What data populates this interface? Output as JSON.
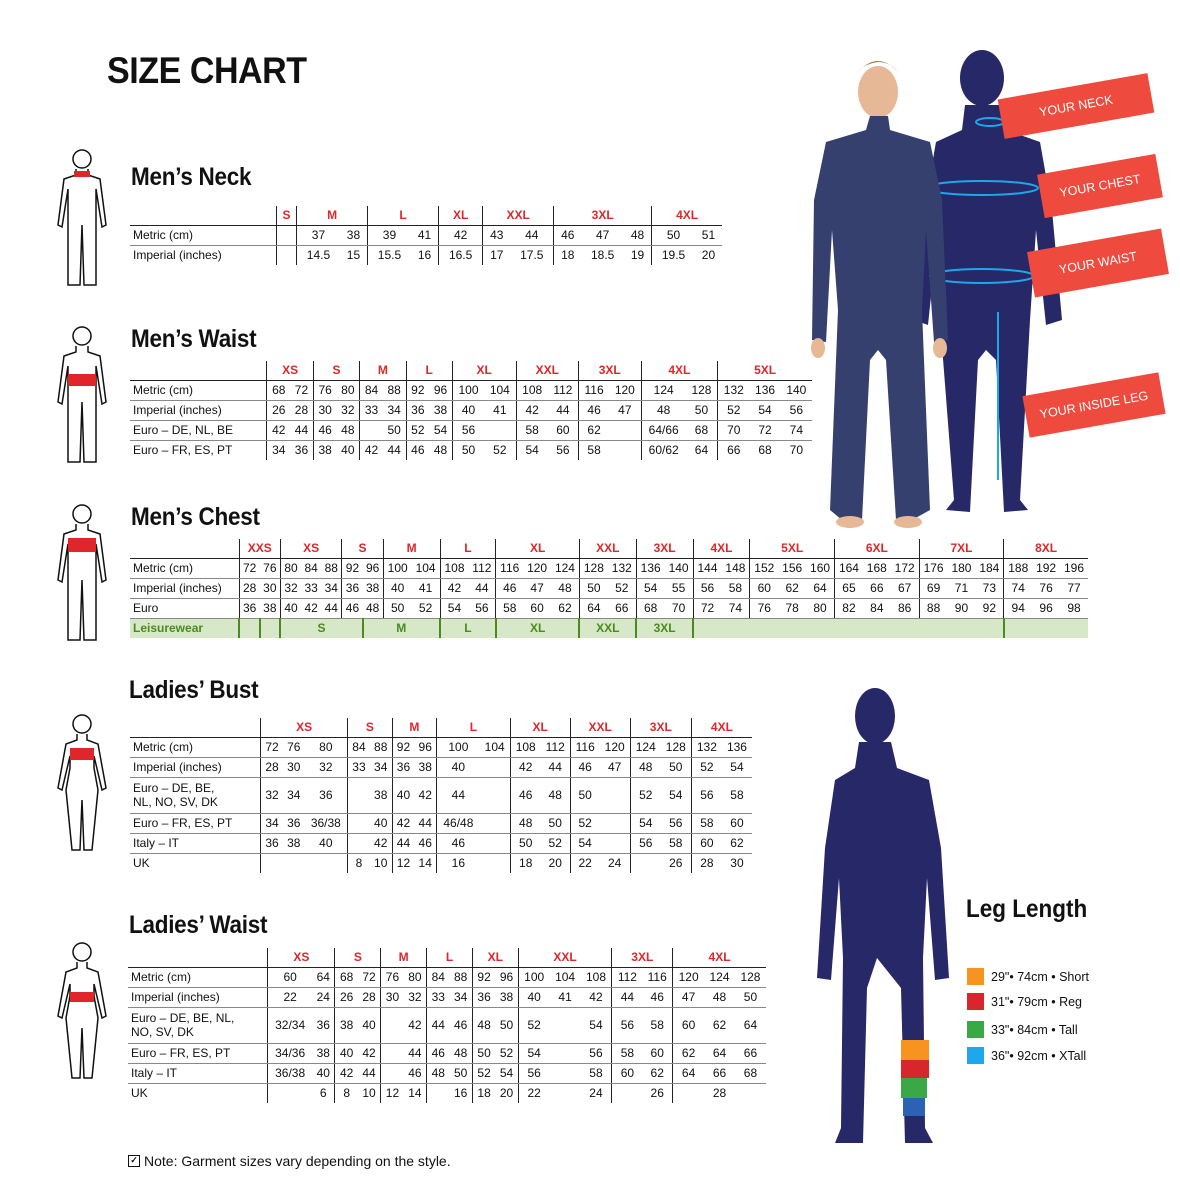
{
  "title": "SIZE CHART",
  "tables": [
    {
      "id": "mens-neck",
      "title": "Men’s Neck",
      "groups": [
        [
          "S",
          1
        ],
        [
          "M",
          2
        ],
        [
          "L",
          2
        ],
        [
          "XL",
          1
        ],
        [
          "XXL",
          2
        ],
        [
          "3XL",
          3
        ],
        [
          "4XL",
          2
        ]
      ],
      "rows": [
        {
          "label": "Metric (cm)",
          "cells": [
            "",
            "37",
            "38",
            "39",
            "41",
            "42",
            "43",
            "44",
            "46",
            "47",
            "48",
            "50",
            "51"
          ]
        },
        {
          "label": "Imperial (inches)",
          "cells": [
            "",
            "14.5",
            "15",
            "15.5",
            "16",
            "16.5",
            "17",
            "17.5",
            "18",
            "18.5",
            "19",
            "19.5",
            "20"
          ]
        }
      ]
    },
    {
      "id": "mens-waist",
      "title": "Men’s Waist",
      "groups": [
        [
          "XS",
          2
        ],
        [
          "S",
          2
        ],
        [
          "M",
          2
        ],
        [
          "L",
          2
        ],
        [
          "XL",
          2
        ],
        [
          "XXL",
          2
        ],
        [
          "3XL",
          2
        ],
        [
          "4XL",
          2
        ],
        [
          "5XL",
          3
        ]
      ],
      "rows": [
        {
          "label": "Metric (cm)",
          "cells": [
            "68",
            "72",
            "76",
            "80",
            "84",
            "88",
            "92",
            "96",
            "100",
            "104",
            "108",
            "112",
            "116",
            "120",
            "124",
            "128",
            "132",
            "136",
            "140"
          ]
        },
        {
          "label": "Imperial (inches)",
          "cells": [
            "26",
            "28",
            "30",
            "32",
            "33",
            "34",
            "36",
            "38",
            "40",
            "41",
            "42",
            "44",
            "46",
            "47",
            "48",
            "50",
            "52",
            "54",
            "56"
          ]
        },
        {
          "label": "Euro – DE, NL, BE",
          "cells": [
            "42",
            "44",
            "46",
            "48",
            "",
            "50",
            "52",
            "54",
            "56",
            "",
            "58",
            "60",
            "62",
            "",
            "64/66",
            "68",
            "70",
            "72",
            "74"
          ]
        },
        {
          "label": "Euro – FR, ES, PT",
          "cells": [
            "34",
            "36",
            "38",
            "40",
            "42",
            "44",
            "46",
            "48",
            "50",
            "52",
            "54",
            "56",
            "58",
            "",
            "60/62",
            "64",
            "66",
            "68",
            "70"
          ]
        }
      ]
    },
    {
      "id": "mens-chest",
      "title": "Men’s Chest",
      "groups": [
        [
          "XXS",
          2
        ],
        [
          "XS",
          3
        ],
        [
          "S",
          2
        ],
        [
          "M",
          2
        ],
        [
          "L",
          2
        ],
        [
          "XL",
          3
        ],
        [
          "XXL",
          2
        ],
        [
          "3XL",
          2
        ],
        [
          "4XL",
          2
        ],
        [
          "5XL",
          3
        ],
        [
          "6XL",
          3
        ],
        [
          "7XL",
          3
        ],
        [
          "8XL",
          3
        ]
      ],
      "rows": [
        {
          "label": "Metric (cm)",
          "cells": [
            "72",
            "76",
            "80",
            "84",
            "88",
            "92",
            "96",
            "100",
            "104",
            "108",
            "112",
            "116",
            "120",
            "124",
            "128",
            "132",
            "136",
            "140",
            "144",
            "148",
            "152",
            "156",
            "160",
            "164",
            "168",
            "172",
            "176",
            "180",
            "184",
            "188",
            "192",
            "196"
          ]
        },
        {
          "label": "Imperial (inches)",
          "cells": [
            "28",
            "30",
            "32",
            "33",
            "34",
            "36",
            "38",
            "40",
            "41",
            "42",
            "44",
            "46",
            "47",
            "48",
            "50",
            "52",
            "54",
            "55",
            "56",
            "58",
            "60",
            "62",
            "64",
            "65",
            "66",
            "67",
            "69",
            "71",
            "73",
            "74",
            "76",
            "77"
          ]
        },
        {
          "label": "Euro",
          "cells": [
            "36",
            "38",
            "40",
            "42",
            "44",
            "46",
            "48",
            "50",
            "52",
            "54",
            "56",
            "58",
            "60",
            "62",
            "64",
            "66",
            "68",
            "70",
            "72",
            "74",
            "76",
            "78",
            "80",
            "82",
            "84",
            "86",
            "88",
            "90",
            "92",
            "94",
            "96",
            "98"
          ]
        }
      ],
      "leisurewear": {
        "label": "Leisurewear",
        "spans": [
          [
            "",
            1
          ],
          [
            "",
            1
          ],
          [
            "S",
            4
          ],
          [
            "M",
            3
          ],
          [
            "L",
            2
          ],
          [
            "XL",
            3
          ],
          [
            "XXL",
            2
          ],
          [
            "3XL",
            2
          ],
          [
            "",
            11
          ],
          [
            "",
            3
          ]
        ]
      }
    },
    {
      "id": "ladies-bust",
      "title": "Ladies’ Bust",
      "groups": [
        [
          "XS",
          3
        ],
        [
          "S",
          2
        ],
        [
          "M",
          2
        ],
        [
          "L",
          2
        ],
        [
          "XL",
          2
        ],
        [
          "XXL",
          2
        ],
        [
          "3XL",
          2
        ],
        [
          "4XL",
          2
        ]
      ],
      "rows": [
        {
          "label": "Metric (cm)",
          "cells": [
            "72",
            "76",
            "80",
            "84",
            "88",
            "92",
            "96",
            "100",
            "104",
            "108",
            "112",
            "116",
            "120",
            "124",
            "128",
            "132",
            "136"
          ]
        },
        {
          "label": "Imperial (inches)",
          "cells": [
            "28",
            "30",
            "32",
            "33",
            "34",
            "36",
            "38",
            "40",
            "",
            "42",
            "44",
            "46",
            "47",
            "48",
            "50",
            "52",
            "54"
          ]
        },
        {
          "label": "Euro –  DE, BE,",
          "label2": "NL, NO, SV, DK",
          "cells": [
            "32",
            "34",
            "36",
            "",
            "38",
            "40",
            "42",
            "44",
            "",
            "46",
            "48",
            "50",
            "",
            "52",
            "54",
            "56",
            "58"
          ]
        },
        {
          "label": "Euro – FR, ES, PT",
          "cells": [
            "34",
            "36",
            "36/38",
            "",
            "40",
            "42",
            "44",
            "46/48",
            "",
            "48",
            "50",
            "52",
            "",
            "54",
            "56",
            "58",
            "60"
          ]
        },
        {
          "label": "Italy – IT",
          "cells": [
            "36",
            "38",
            "40",
            "",
            "42",
            "44",
            "46",
            "46",
            "",
            "50",
            "52",
            "54",
            "",
            "56",
            "58",
            "60",
            "62"
          ]
        },
        {
          "label": "UK",
          "cells": [
            "",
            "",
            "",
            "8",
            "10",
            "12",
            "14",
            "16",
            "",
            "18",
            "20",
            "22",
            "24",
            "",
            "26",
            "28",
            "30"
          ]
        }
      ]
    },
    {
      "id": "ladies-waist",
      "title": "Ladies’ Waist",
      "groups": [
        [
          "XS",
          2
        ],
        [
          "S",
          2
        ],
        [
          "M",
          2
        ],
        [
          "L",
          2
        ],
        [
          "XL",
          2
        ],
        [
          "XXL",
          3
        ],
        [
          "3XL",
          2
        ],
        [
          "4XL",
          3
        ]
      ],
      "rows": [
        {
          "label": "Metric (cm)",
          "cells": [
            "60",
            "64",
            "68",
            "72",
            "76",
            "80",
            "84",
            "88",
            "92",
            "96",
            "100",
            "104",
            "108",
            "112",
            "116",
            "120",
            "124",
            "128"
          ]
        },
        {
          "label": "Imperial (inches)",
          "cells": [
            "22",
            "24",
            "26",
            "28",
            "30",
            "32",
            "33",
            "34",
            "36",
            "38",
            "40",
            "41",
            "42",
            "44",
            "46",
            "47",
            "48",
            "50"
          ]
        },
        {
          "label": "Euro – DE, BE, NL,",
          "label2": "NO, SV, DK",
          "cells": [
            "32/34",
            "36",
            "38",
            "40",
            "",
            "42",
            "44",
            "46",
            "48",
            "50",
            "52",
            "",
            "54",
            "56",
            "58",
            "60",
            "62",
            "64"
          ]
        },
        {
          "label": "Euro – FR, ES, PT",
          "cells": [
            "34/36",
            "38",
            "40",
            "42",
            "",
            "44",
            "46",
            "48",
            "50",
            "52",
            "54",
            "",
            "56",
            "58",
            "60",
            "62",
            "64",
            "66"
          ]
        },
        {
          "label": "Italy – IT",
          "cells": [
            "36/38",
            "40",
            "42",
            "44",
            "",
            "46",
            "48",
            "50",
            "52",
            "54",
            "56",
            "",
            "58",
            "60",
            "62",
            "64",
            "66",
            "68"
          ]
        },
        {
          "label": "UK",
          "cells": [
            "",
            "6",
            "8",
            "10",
            "12",
            "14",
            "",
            "16",
            "18",
            "20",
            "22",
            "",
            "24",
            "",
            "26",
            "",
            "28",
            ""
          ]
        }
      ]
    }
  ],
  "measure_tags": [
    "YOUR NECK",
    "YOUR CHEST",
    "YOUR WAIST",
    "YOUR INSIDE LEG"
  ],
  "leg_length": {
    "title": "Leg Length",
    "items": [
      {
        "label": "29\"• 74cm • Short",
        "color": "#f7931e"
      },
      {
        "label": "31\"• 79cm • Reg",
        "color": "#d7262c"
      },
      {
        "label": "33\"• 84cm • Tall",
        "color": "#3aa845"
      },
      {
        "label": "36\"• 92cm • XTall",
        "color": "#1ea8ec"
      }
    ]
  },
  "note": "Note: Garment sizes vary depending on the style.",
  "colors": {
    "size_header": "#e0262a",
    "tag": "#ef4a3e",
    "silhouette": "#262868",
    "leisurewear_bg": "#d7e8c8",
    "leisurewear_text": "#4a8a1e"
  }
}
